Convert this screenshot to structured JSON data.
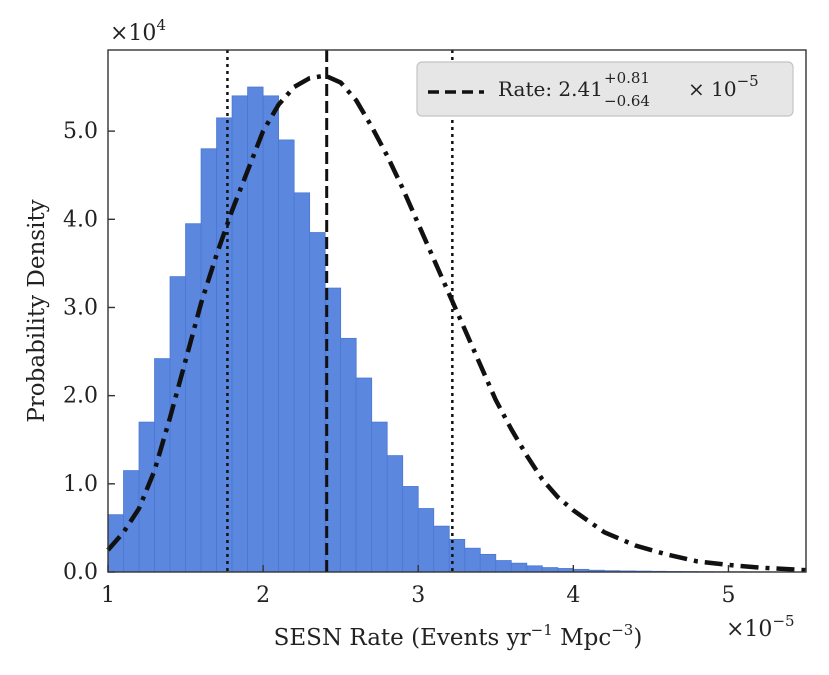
{
  "chart_data": {
    "type": "bar",
    "xlabel_main": "SESN Rate (Events yr",
    "xlabel_exp1": "−1",
    "xlabel_mid": " Mpc",
    "xlabel_exp2": "−3",
    "xlabel_end": ")",
    "ylabel": "Probability Density",
    "x_multiplier_base": "×10",
    "x_multiplier_exp": "−5",
    "y_multiplier_base": "×10",
    "y_multiplier_exp": "4",
    "xlim": [
      1.0,
      5.5
    ],
    "ylim": [
      0.0,
      5.92
    ],
    "xticks": [
      1,
      2,
      3,
      4,
      5
    ],
    "xtick_labels": [
      "1",
      "2",
      "3",
      "4",
      "5"
    ],
    "yticks": [
      0.0,
      1.0,
      2.0,
      3.0,
      4.0,
      5.0
    ],
    "ytick_labels": [
      "0.0",
      "1.0",
      "2.0",
      "3.0",
      "4.0",
      "5.0"
    ],
    "bins": {
      "start": 1.0,
      "width": 0.1,
      "heights": [
        0.65,
        1.15,
        1.7,
        2.42,
        3.35,
        3.95,
        4.8,
        5.15,
        5.4,
        5.5,
        5.4,
        4.9,
        4.3,
        3.85,
        3.22,
        2.65,
        2.2,
        1.7,
        1.32,
        0.97,
        0.72,
        0.52,
        0.37,
        0.27,
        0.2,
        0.13,
        0.1,
        0.07,
        0.05,
        0.04,
        0.03,
        0.02,
        0.015,
        0.012,
        0.01,
        0.008,
        0.006,
        0.005,
        0.004,
        0.003,
        0.003,
        0.002,
        0.002,
        0.002,
        0.001
      ]
    },
    "fit_curve": {
      "x": [
        1.0,
        1.1,
        1.2,
        1.3,
        1.4,
        1.5,
        1.6,
        1.7,
        1.8,
        1.9,
        2.0,
        2.1,
        2.2,
        2.3,
        2.4,
        2.5,
        2.6,
        2.7,
        2.8,
        2.9,
        3.0,
        3.1,
        3.2,
        3.3,
        3.4,
        3.5,
        3.6,
        3.7,
        3.8,
        3.9,
        4.0,
        4.2,
        4.4,
        4.6,
        4.8,
        5.0,
        5.2,
        5.5
      ],
      "y": [
        0.25,
        0.45,
        0.72,
        1.15,
        1.75,
        2.4,
        3.05,
        3.6,
        4.1,
        4.55,
        5.0,
        5.3,
        5.5,
        5.6,
        5.63,
        5.55,
        5.35,
        5.05,
        4.72,
        4.35,
        3.95,
        3.55,
        3.15,
        2.75,
        2.35,
        1.95,
        1.62,
        1.32,
        1.05,
        0.85,
        0.7,
        0.45,
        0.3,
        0.2,
        0.12,
        0.08,
        0.05,
        0.02
      ]
    },
    "median": 2.41,
    "lower_bound": 1.77,
    "upper_bound": 3.22,
    "legend": {
      "label_main": "Rate: 2.41",
      "sup": "+0.81",
      "sub": "−0.64",
      "times": " × 10",
      "exp": "−5",
      "position": "top-right"
    },
    "colors": {
      "bar_fill": "#5b87de",
      "bar_edge": "#4a78d4",
      "curve": "#111111",
      "legend_bg": "#e6e6e6"
    }
  }
}
